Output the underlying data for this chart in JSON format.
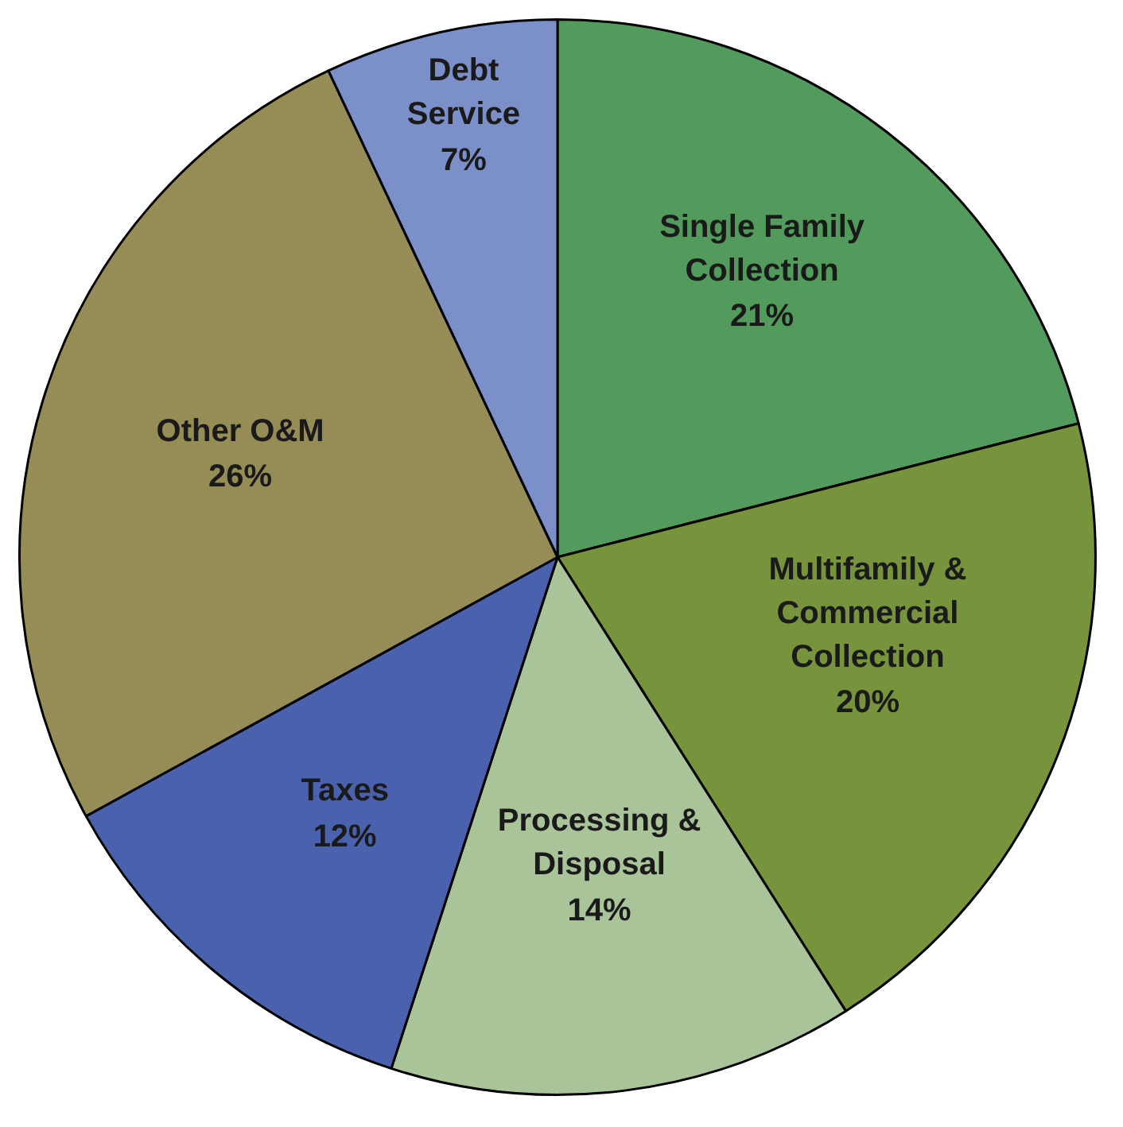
{
  "chart_data": {
    "type": "pie",
    "categories": [
      "Single Family Collection",
      "Multifamily & Commercial Collection",
      "Processing & Disposal",
      "Taxes",
      "Other O&M",
      "Debt Service"
    ],
    "values": [
      21,
      20,
      14,
      12,
      26,
      7
    ],
    "value_labels": [
      "21%",
      "20%",
      "14%",
      "12%",
      "26%",
      "7%"
    ],
    "colors": [
      "#529b5c",
      "#77933c",
      "#a9c499",
      "#4a62ad",
      "#968c55",
      "#7b8fc9"
    ]
  }
}
